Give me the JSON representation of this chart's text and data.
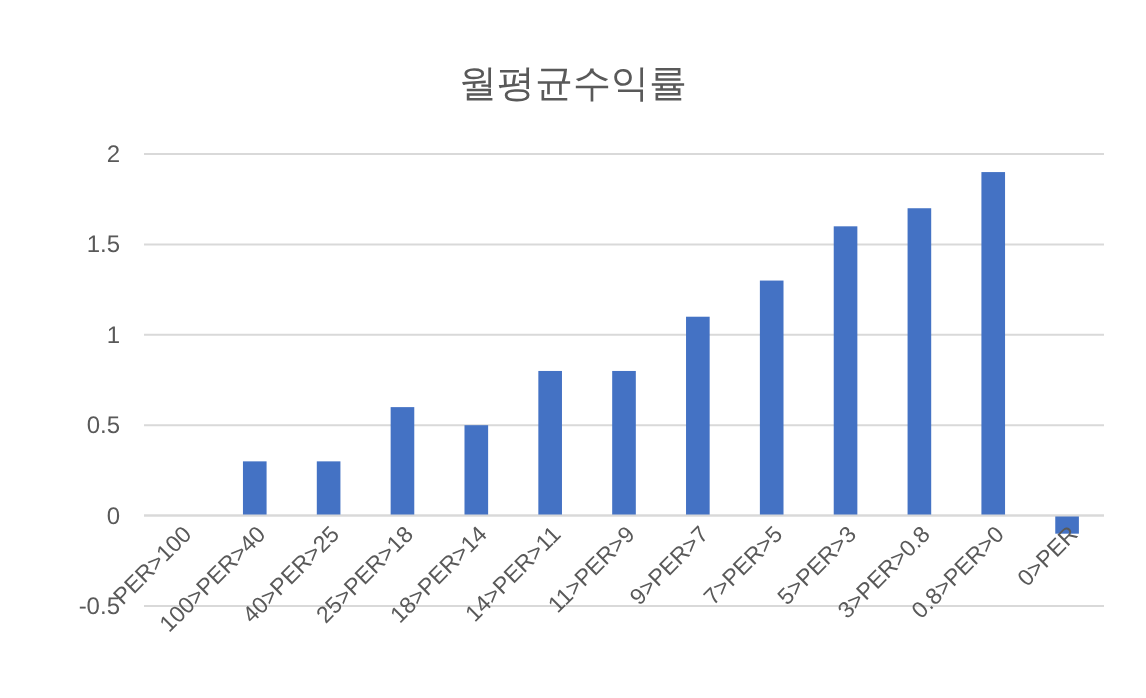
{
  "chart_data": {
    "type": "bar",
    "title": "월평균수익률",
    "categories": [
      "PER>100",
      "100>PER>40",
      "40>PER>25",
      "25>PER>18",
      "18>PER>14",
      "14>PER>11",
      "11>PER>9",
      "9>PER>7",
      "7>PER>5",
      "5>PER>3",
      "3>PER>0.8",
      "0.8>PER>0",
      "0>PER"
    ],
    "values": [
      0,
      0.3,
      0.3,
      0.6,
      0.5,
      0.8,
      0.8,
      1.1,
      1.3,
      1.6,
      1.7,
      1.9,
      -0.1
    ],
    "color": "#4472c4",
    "ylim": [
      -0.5,
      2
    ],
    "yticks": [
      -0.5,
      0,
      0.5,
      1,
      1.5,
      2
    ],
    "grid": "y"
  }
}
